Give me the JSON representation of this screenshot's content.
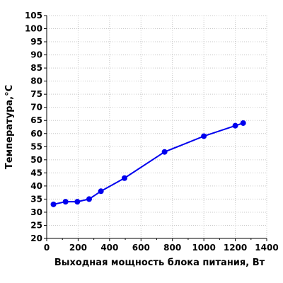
{
  "chart_data": {
    "type": "line",
    "title": "",
    "xlabel": "Выходная мощность блока питания, Вт",
    "ylabel": "Температура,°C",
    "xlim": [
      0,
      1400
    ],
    "ylim": [
      20,
      105
    ],
    "xticks": [
      0,
      200,
      400,
      600,
      800,
      1000,
      1200,
      1400
    ],
    "yticks": [
      20,
      25,
      30,
      35,
      40,
      45,
      50,
      55,
      60,
      65,
      70,
      75,
      80,
      85,
      90,
      95,
      100,
      105
    ],
    "grid": true,
    "legend": "none",
    "series": [
      {
        "color": "#0000ee",
        "x": [
          43,
          120,
          195,
          270,
          345,
          495,
          750,
          1000,
          1200,
          1250
        ],
        "y": [
          33,
          34,
          34,
          35,
          38,
          43,
          53,
          59,
          63,
          64
        ]
      }
    ]
  }
}
